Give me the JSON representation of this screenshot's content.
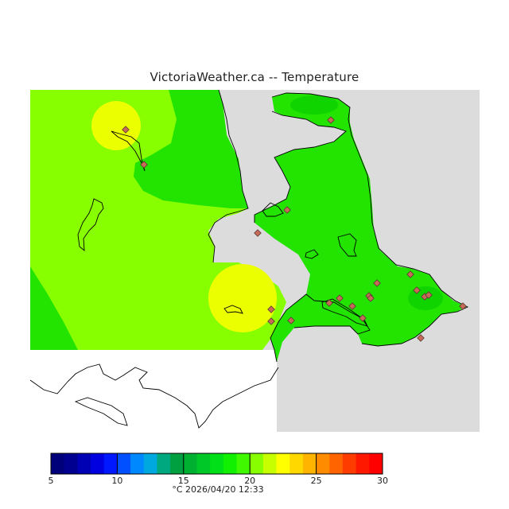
{
  "header": {
    "title": "VictoriaWeather.ca -- Temperature"
  },
  "colors": {
    "background_land": "#dcdcdc",
    "water_outline": "#000000",
    "station_marker": "#c86a5a",
    "field_green": "#22e400",
    "field_yellowgreen": "#88ff00",
    "field_yellow": "#ecff00"
  },
  "map": {
    "layers": [
      "temperature-contour-field",
      "coastline-outline",
      "station-markers"
    ],
    "station_count": 21
  },
  "legend": {
    "min": 5,
    "max": 30,
    "tick_labels": [
      "5",
      "10",
      "15",
      "20",
      "25",
      "30"
    ],
    "unit_and_time": "°C  2026/04/20 12:33",
    "colors": [
      "#00007a",
      "#000090",
      "#0000b4",
      "#0000e0",
      "#0018ff",
      "#0050ff",
      "#0088ff",
      "#00a8e0",
      "#00a880",
      "#00a040",
      "#00b030",
      "#00c828",
      "#00e018",
      "#10f000",
      "#40f800",
      "#88ff00",
      "#c8ff00",
      "#ffff00",
      "#ffd800",
      "#ffb400",
      "#ff8c00",
      "#ff6400",
      "#ff3c00",
      "#ff1800",
      "#ff0000"
    ]
  }
}
